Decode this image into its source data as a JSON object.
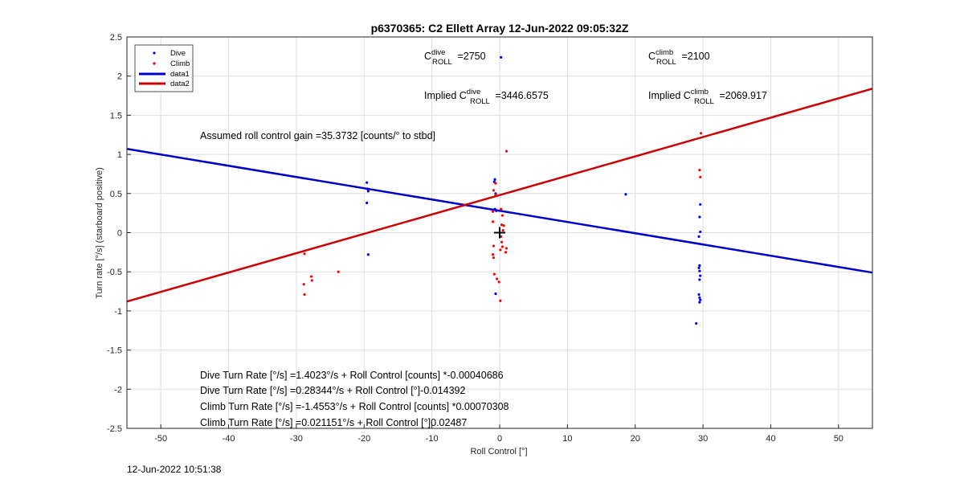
{
  "chart_data": {
    "type": "scatter",
    "title": "p6370365: C2 Ellett Array 12-Jun-2022 09:05:32Z",
    "xlabel": "Roll Control [°]",
    "ylabel": "Turn rate [°/s] (starboard positive)",
    "xlim": [
      -55,
      55
    ],
    "ylim": [
      -2.5,
      2.5
    ],
    "xticks": [
      "-50",
      "-40",
      "-30",
      "-20",
      "-10",
      "0",
      "10",
      "20",
      "30",
      "40",
      "50"
    ],
    "yticks": [
      "2.5",
      "2",
      "1.5",
      "1",
      "0.5",
      "0",
      "-0.5",
      "-1",
      "-1.5",
      "-2",
      "-2.5"
    ],
    "grid": true,
    "legend_position": "top-left",
    "legend": [
      "Dive",
      "Climb",
      "data1",
      "data2"
    ],
    "series": [
      {
        "name": "Dive",
        "kind": "points",
        "color": "#0000ff",
        "points": [
          [
            -19.6,
            0.64
          ],
          [
            -19.5,
            0.56
          ],
          [
            -19.4,
            0.53
          ],
          [
            -19.6,
            0.38
          ],
          [
            -19.4,
            -0.28
          ],
          [
            -0.7,
            0.68
          ],
          [
            -0.8,
            0.65
          ],
          [
            -0.6,
            0.5
          ],
          [
            -0.7,
            0.3
          ],
          [
            -0.5,
            0.28
          ],
          [
            -0.6,
            -0.78
          ],
          [
            0.2,
            2.24
          ],
          [
            18.6,
            0.49
          ],
          [
            29.6,
            0.36
          ],
          [
            29.5,
            0.2
          ],
          [
            29.6,
            0.01
          ],
          [
            29.4,
            -0.05
          ],
          [
            29.5,
            -0.42
          ],
          [
            29.4,
            -0.45
          ],
          [
            29.5,
            -0.49
          ],
          [
            29.6,
            -0.55
          ],
          [
            29.5,
            -0.6
          ],
          [
            29.4,
            -0.79
          ],
          [
            29.5,
            -0.83
          ],
          [
            29.6,
            -0.86
          ],
          [
            29.5,
            -0.89
          ],
          [
            29.0,
            -1.16
          ]
        ]
      },
      {
        "name": "Climb",
        "kind": "points",
        "color": "#ff0000",
        "points": [
          [
            -28.8,
            -0.27
          ],
          [
            -28.9,
            -0.66
          ],
          [
            -28.8,
            -0.79
          ],
          [
            -27.8,
            -0.56
          ],
          [
            -27.7,
            -0.61
          ],
          [
            -23.8,
            -0.5
          ],
          [
            -0.6,
            0.63
          ],
          [
            -0.9,
            0.54
          ],
          [
            -0.6,
            0.48
          ],
          [
            -1.0,
            0.27
          ],
          [
            -1.0,
            0.14
          ],
          [
            -0.9,
            -0.17
          ],
          [
            -1.0,
            -0.28
          ],
          [
            -0.9,
            -0.32
          ],
          [
            -0.8,
            -0.53
          ],
          [
            -0.4,
            -0.59
          ],
          [
            -0.1,
            -0.63
          ],
          [
            0.1,
            -0.87
          ],
          [
            0.2,
            0.3
          ],
          [
            0.4,
            0.22
          ],
          [
            0.3,
            0.1
          ],
          [
            0.5,
            0.03
          ],
          [
            0.2,
            -0.05
          ],
          [
            0.3,
            -0.12
          ],
          [
            0.4,
            -0.18
          ],
          [
            0.1,
            -0.22
          ],
          [
            0.9,
            -0.25
          ],
          [
            1.0,
            -0.2
          ],
          [
            0.6,
            0.09
          ],
          [
            1.0,
            1.04
          ],
          [
            29.7,
            1.27
          ],
          [
            29.5,
            0.8
          ],
          [
            29.6,
            0.71
          ]
        ]
      },
      {
        "name": "data1",
        "kind": "line",
        "color": "#0000cc",
        "points": [
          [
            -55,
            1.07
          ],
          [
            55,
            -0.51
          ]
        ]
      },
      {
        "name": "data2",
        "kind": "line",
        "color": "#cc0000",
        "points": [
          [
            -55,
            -0.88
          ],
          [
            55,
            1.84
          ]
        ]
      }
    ],
    "marker": {
      "type": "plus",
      "color": "#000000",
      "x": 0,
      "y": 0
    },
    "annotations": {
      "c_dive": {
        "main": "C",
        "sup": "dive",
        "sub": "ROLL",
        "value": " =2750"
      },
      "c_climb": {
        "main": "C",
        "sup": "climb",
        "sub": "ROLL",
        "value": " =2100"
      },
      "implied_dive": {
        "prefix": "Implied C",
        "sup": "dive",
        "sub": "ROLL",
        "value": " =3446.6575"
      },
      "implied_climb": {
        "prefix": "Implied C",
        "sup": "climb",
        "sub": "ROLL",
        "value": " =2069.917"
      },
      "gain": "Assumed roll control gain =35.3732 [counts/° to stbd]",
      "fits": [
        "Dive Turn Rate [°/s] =1.4023°/s + Roll Control [counts] *-0.00040686",
        "Dive Turn Rate [°/s] =0.28344°/s + Roll Control [°]-0.014392",
        "Climb Turn Rate [°/s] =-1.4553°/s + Roll Control [counts] *0.00070308",
        "Climb Turn Rate [°/s] =0.021151°/s + Roll Control [°]0.02487"
      ]
    },
    "timestamp": "12-Jun-2022 10:51:38"
  }
}
